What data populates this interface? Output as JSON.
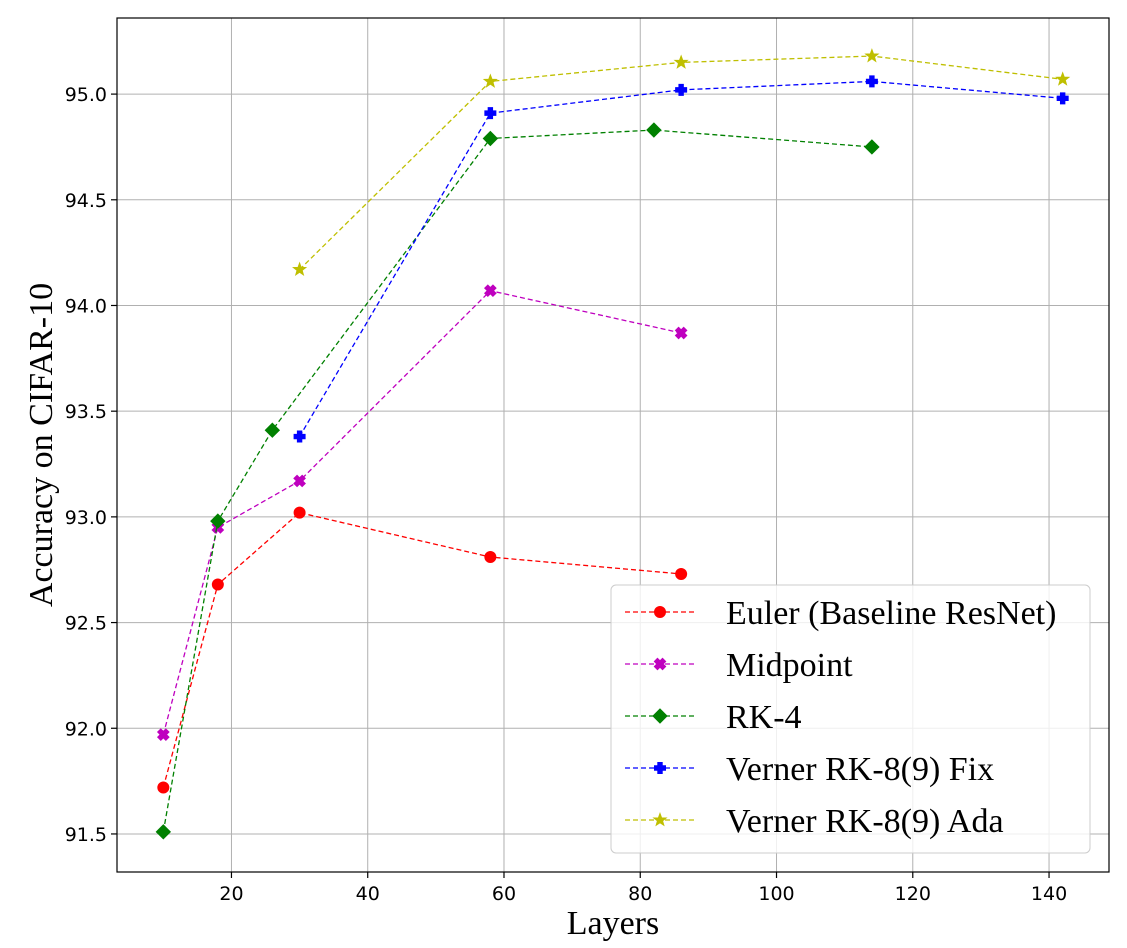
{
  "chart_data": {
    "type": "line",
    "title": "",
    "xlabel": "Layers",
    "ylabel": "Accuracy on CIFAR-10",
    "xlim": [
      3.2,
      148.8
    ],
    "ylim": [
      91.32,
      95.36
    ],
    "xticks": [
      20,
      40,
      60,
      80,
      100,
      120,
      140
    ],
    "xtick_labels": [
      "20",
      "40",
      "60",
      "80",
      "100",
      "120",
      "140"
    ],
    "yticks": [
      91.5,
      92.0,
      92.5,
      93.0,
      93.5,
      94.0,
      94.5,
      95.0
    ],
    "ytick_labels": [
      "91.5",
      "92.0",
      "92.5",
      "93.0",
      "93.5",
      "94.0",
      "94.5",
      "95.0"
    ],
    "grid": true,
    "legend_position": "lower-right",
    "series": [
      {
        "name": "Euler (Baseline ResNet)",
        "color": "#ff0000",
        "marker": "circle",
        "x": [
          10,
          18,
          30,
          58,
          86
        ],
        "y": [
          91.72,
          92.68,
          93.02,
          92.81,
          92.73
        ]
      },
      {
        "name": "Midpoint",
        "color": "#bf00bf",
        "marker": "x-filled",
        "x": [
          10,
          18,
          30,
          58,
          86
        ],
        "y": [
          91.97,
          92.95,
          93.17,
          94.07,
          93.87
        ]
      },
      {
        "name": "RK-4",
        "color": "#008000",
        "marker": "diamond",
        "x": [
          10,
          18,
          26,
          58,
          82,
          114
        ],
        "y": [
          91.51,
          92.98,
          93.41,
          94.79,
          94.83,
          94.75
        ]
      },
      {
        "name": "Verner RK-8(9) Fix",
        "color": "#0000ff",
        "marker": "plus-filled",
        "x": [
          30,
          58,
          86,
          114,
          142
        ],
        "y": [
          93.38,
          94.91,
          95.02,
          95.06,
          94.98
        ]
      },
      {
        "name": "Verner RK-8(9) Ada",
        "color": "#bfbf00",
        "marker": "star",
        "x": [
          30,
          58,
          86,
          114,
          142
        ],
        "y": [
          94.17,
          95.06,
          95.15,
          95.18,
          95.07
        ]
      }
    ]
  }
}
